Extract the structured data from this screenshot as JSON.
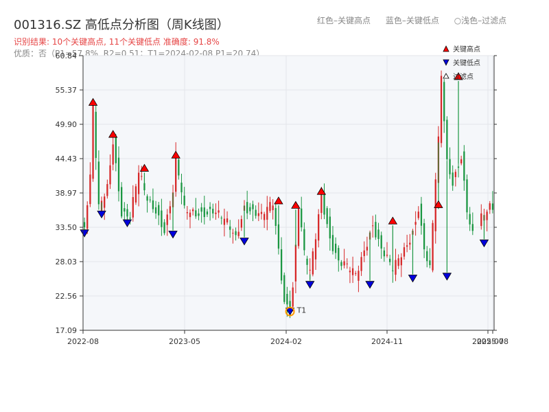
{
  "title": "001316.SZ 高低点分析图（周K线图）",
  "top_legend": [
    "红色–关键高点",
    "蓝色–关键低点",
    "○浅色–过滤点"
  ],
  "subtitle_result": "识别结果: 10个关键高点, 11个关键低点  准确度: 91.8%",
  "subtitle_quality": "优质：否（P1=57.8%, R2=0.51；T1=2024-02-08 P1=20.74）",
  "colors": {
    "up": "#d62728",
    "down": "#1a9641",
    "high_marker": "#ff0000",
    "low_marker": "#0000dd",
    "t1": "#ff9900",
    "plot_bg": "#f5f7fa"
  },
  "chart_data": {
    "type": "candlestick",
    "y_ticks": [
      "60.84",
      "55.37",
      "49.90",
      "44.43",
      "38.97",
      "33.50",
      "28.03",
      "22.56",
      "17.09"
    ],
    "ylim": [
      17.09,
      60.84
    ],
    "x_ticks": [
      "2022-08",
      "2023-05",
      "2024-02",
      "2024-11",
      "2025-07",
      "2025-08"
    ],
    "legend": [
      "关键高点",
      "关键低点",
      "过滤点"
    ],
    "t1_label": "T1",
    "t1_value": 20.74,
    "price_path": [
      [
        0,
        36,
        33.5
      ],
      [
        2,
        34,
        41
      ],
      [
        3,
        44,
        52.7
      ],
      [
        5,
        48,
        36.2
      ],
      [
        8,
        43,
        40
      ],
      [
        10,
        44,
        47.6
      ],
      [
        13,
        40,
        36
      ],
      [
        16,
        38,
        35
      ],
      [
        19,
        40,
        42
      ],
      [
        22,
        41,
        38
      ],
      [
        25,
        37,
        36.5
      ],
      [
        28,
        35,
        33.2
      ],
      [
        31,
        37,
        39
      ],
      [
        32,
        39,
        44.3
      ],
      [
        35,
        36,
        36
      ],
      [
        40,
        36.5,
        36
      ],
      [
        45,
        37,
        36
      ],
      [
        50,
        35,
        34
      ],
      [
        53,
        34,
        32
      ],
      [
        56,
        35.5,
        37
      ],
      [
        62,
        36,
        35
      ],
      [
        66,
        36.5,
        37.3
      ],
      [
        68,
        33,
        30
      ],
      [
        70,
        28,
        22
      ],
      [
        72,
        24,
        20.74
      ],
      [
        73,
        25,
        24
      ],
      [
        75,
        30,
        36.8
      ],
      [
        77,
        31,
        29
      ],
      [
        79,
        30,
        26
      ],
      [
        80,
        27,
        29
      ],
      [
        81,
        33,
        32
      ],
      [
        83,
        36,
        38.8
      ],
      [
        86,
        33,
        32
      ],
      [
        89,
        30,
        28
      ],
      [
        92,
        29,
        27
      ],
      [
        95,
        27,
        25.7
      ],
      [
        96,
        28,
        27
      ],
      [
        98,
        31,
        30
      ],
      [
        101,
        33,
        34.2
      ],
      [
        104,
        31,
        30
      ],
      [
        108,
        29,
        26.5
      ],
      [
        112,
        29,
        30
      ],
      [
        115,
        32,
        33
      ],
      [
        117,
        35,
        36.8
      ],
      [
        119,
        31,
        30
      ],
      [
        121,
        27,
        26.5
      ],
      [
        123,
        37,
        41
      ],
      [
        124,
        42,
        47
      ],
      [
        125,
        52,
        57.5
      ],
      [
        127,
        45,
        44
      ],
      [
        129,
        42,
        41
      ],
      [
        132,
        44,
        45
      ],
      [
        134,
        40,
        36
      ],
      [
        136,
        33,
        31.9
      ],
      [
        138,
        33,
        34
      ],
      [
        140,
        35,
        35.5
      ],
      [
        142,
        37,
        37
      ]
    ],
    "key_highs": [
      {
        "x": 3,
        "value": 52.7
      },
      {
        "x": 10,
        "value": 47.6
      },
      {
        "x": 21,
        "value": 42.2
      },
      {
        "x": 32,
        "value": 44.3
      },
      {
        "x": 68,
        "value": 37
      },
      {
        "x": 74,
        "value": 36.3
      },
      {
        "x": 83,
        "value": 38.5
      },
      {
        "x": 108,
        "value": 33.8
      },
      {
        "x": 124,
        "value": 36.4
      },
      {
        "x": 131,
        "value": 56.8
      }
    ],
    "key_lows": [
      {
        "x": 0,
        "value": 33.2
      },
      {
        "x": 6,
        "value": 36.2
      },
      {
        "x": 15,
        "value": 34.8
      },
      {
        "x": 31,
        "value": 33
      },
      {
        "x": 56,
        "value": 31.9
      },
      {
        "x": 72,
        "value": 20.74
      },
      {
        "x": 79,
        "value": 25
      },
      {
        "x": 100,
        "value": 25
      },
      {
        "x": 115,
        "value": 26
      },
      {
        "x": 127,
        "value": 26.3
      },
      {
        "x": 140,
        "value": 31.6
      }
    ]
  }
}
